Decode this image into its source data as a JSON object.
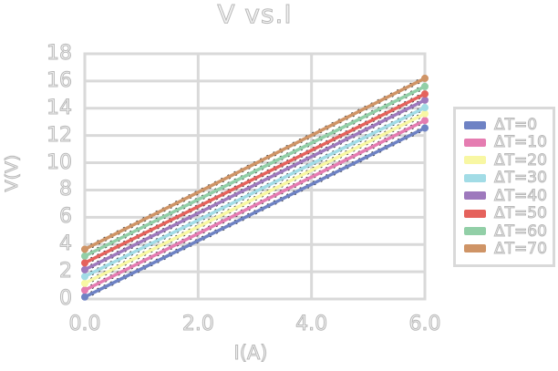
{
  "page": {
    "background": "#ffffff"
  },
  "chart_data": {
    "type": "line",
    "title": "V vs.I",
    "xlabel": "I(A)",
    "ylabel": "V(V)",
    "xlim": [
      0.0,
      6.0
    ],
    "ylim": [
      0,
      18
    ],
    "xtick_values": [
      0,
      2,
      4,
      6
    ],
    "xtick_labels": [
      "0.0",
      "2.0",
      "4.0",
      "6.0"
    ],
    "ytick_values": [
      0,
      2,
      4,
      6,
      8,
      10,
      12,
      14,
      16,
      18
    ],
    "ytick_labels": [
      "0",
      "2",
      "4",
      "6",
      "8",
      "10",
      "12",
      "14",
      "16",
      "18"
    ],
    "grid": true,
    "grid_color": "#d9d9d9",
    "legend_position": "center-right",
    "legend_border_color": "#d9d9d9",
    "x": [
      0.0,
      6.0
    ],
    "series": [
      {
        "name": "ΔT=0",
        "color": "#6e82c4",
        "values": [
          0.15,
          12.55
        ]
      },
      {
        "name": "ΔT=10",
        "color": "#e57cb1",
        "values": [
          0.65,
          13.1
        ]
      },
      {
        "name": "ΔT=20",
        "color": "#f8f7a3",
        "values": [
          1.15,
          13.6
        ]
      },
      {
        "name": "ΔT=30",
        "color": "#a2dce6",
        "values": [
          1.65,
          14.05
        ]
      },
      {
        "name": "ΔT=40",
        "color": "#9e79bd",
        "values": [
          2.15,
          14.6
        ]
      },
      {
        "name": "ΔT=50",
        "color": "#e5625c",
        "values": [
          2.65,
          15.05
        ]
      },
      {
        "name": "ΔT=60",
        "color": "#92cfa7",
        "values": [
          3.15,
          15.6
        ]
      },
      {
        "name": "ΔT=70",
        "color": "#cf9466",
        "values": [
          3.65,
          16.2
        ]
      }
    ],
    "style": {
      "line_width": 3.5,
      "marker": "circle",
      "marker_size": 8,
      "dashed_black_underlay": true,
      "text_effect": "hollow-light-gray"
    }
  }
}
